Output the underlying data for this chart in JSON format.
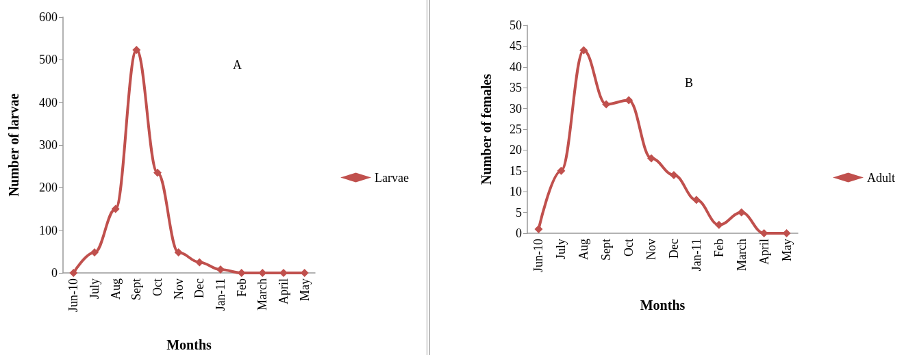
{
  "chart_data": [
    {
      "type": "line",
      "xlabel": "Months",
      "ylabel": "Number of larvae",
      "annotations": [
        "A"
      ],
      "categories": [
        "Jun-10",
        "July",
        "Aug",
        "Sept",
        "Oct",
        "Nov",
        "Dec",
        "Jan-11",
        "Feb",
        "March",
        "April",
        "May"
      ],
      "series": [
        {
          "name": "Larvae",
          "color": "#c0504d",
          "values": [
            0,
            48,
            150,
            523,
            235,
            48,
            25,
            8,
            0,
            0,
            0,
            0
          ]
        }
      ],
      "ylim": [
        0,
        600
      ],
      "yticks": [
        0,
        100,
        200,
        300,
        400,
        500,
        600
      ],
      "grid": false,
      "legend": "right",
      "marker": "diamond",
      "line_style": "solid"
    },
    {
      "type": "line",
      "xlabel": "Months",
      "ylabel": "Number of females",
      "annotations": [
        "B"
      ],
      "categories": [
        "Jun-10",
        "July",
        "Aug",
        "Sept",
        "Oct",
        "Nov",
        "Dec",
        "Jan-11",
        "Feb",
        "March",
        "April",
        "May"
      ],
      "series": [
        {
          "name": "Adult",
          "color": "#c0504d",
          "values": [
            1,
            15,
            44,
            31,
            32,
            18,
            14,
            8,
            2,
            5,
            0,
            0
          ]
        }
      ],
      "ylim": [
        0,
        50
      ],
      "yticks": [
        0,
        5,
        10,
        15,
        20,
        25,
        30,
        35,
        40,
        45,
        50
      ],
      "grid": false,
      "legend": "right",
      "marker": "diamond",
      "line_style": "solid"
    }
  ]
}
